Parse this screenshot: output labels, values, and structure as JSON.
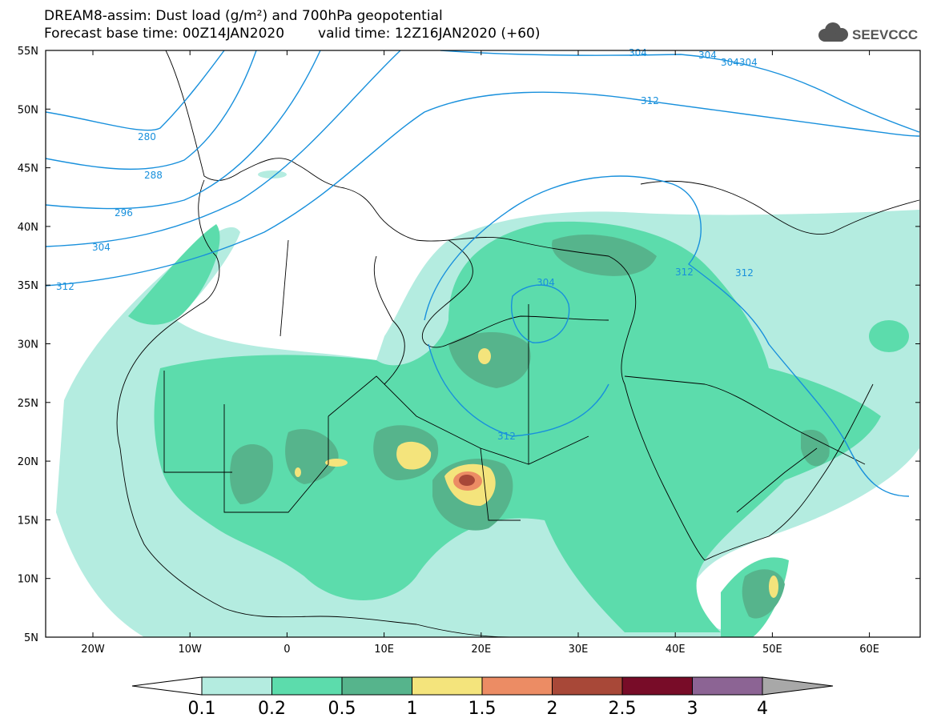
{
  "title_line1": "DREAM8-assim: Dust load (g/m²) and 700hPa geopotential",
  "title_line2_base": "Forecast base time: 00Z14JAN2020",
  "title_line2_valid": "valid time: 12Z16JAN2020 (+60)",
  "logo_text": "SEEVCCC",
  "lat_labels": [
    "55N",
    "50N",
    "45N",
    "40N",
    "35N",
    "30N",
    "25N",
    "20N",
    "15N",
    "10N",
    "5N"
  ],
  "lon_labels": [
    "20W",
    "10W",
    "0",
    "10E",
    "20E",
    "30E",
    "40E",
    "50E",
    "60E"
  ],
  "contour_labels": [
    "280",
    "288",
    "296",
    "304",
    "312",
    "304",
    "312",
    "312",
    "312",
    "304",
    "304",
    "304304",
    "312"
  ],
  "colorbar": {
    "colors": [
      "#b4ece0",
      "#5cdcac",
      "#56b48c",
      "#f4e47c",
      "#ec8c64",
      "#a84838",
      "#780c28",
      "#8c6494",
      "#a8a8a8"
    ],
    "labels": [
      "0.1",
      "0.2",
      "0.5",
      "1",
      "1.5",
      "2",
      "2.5",
      "3",
      "4"
    ]
  }
}
